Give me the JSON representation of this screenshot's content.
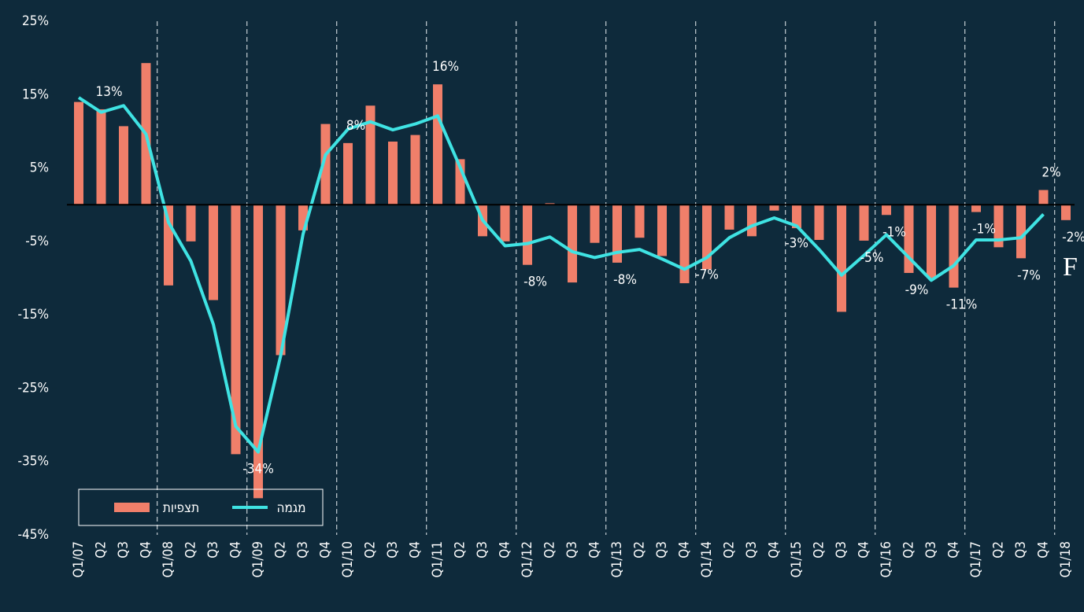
{
  "chart_data": {
    "type": "bar+line",
    "categories": [
      "Q1/07",
      "Q2",
      "Q3",
      "Q4",
      "Q1/08",
      "Q2",
      "Q3",
      "Q4",
      "Q1/09",
      "Q2",
      "Q3",
      "Q4",
      "Q1/10",
      "Q2",
      "Q3",
      "Q4",
      "Q1/11",
      "Q2",
      "Q3",
      "Q4",
      "Q1/12",
      "Q2",
      "Q3",
      "Q4",
      "Q1/13",
      "Q2",
      "Q3",
      "Q4",
      "Q1/14",
      "Q2",
      "Q3",
      "Q4",
      "Q1/15",
      "Q2",
      "Q3",
      "Q4",
      "Q1/16",
      "Q2",
      "Q3",
      "Q4",
      "Q1/17",
      "Q2",
      "Q3",
      "Q4",
      "Q1/18"
    ],
    "series": [
      {
        "name": "תצפיות",
        "type": "bar",
        "color": "#f07f6a",
        "values": [
          14,
          13,
          10.7,
          19.3,
          -11,
          -5,
          -13,
          -34,
          -40,
          -20.5,
          -3.5,
          11,
          8.4,
          13.5,
          8.6,
          9.5,
          16.4,
          6.2,
          -4.3,
          -5,
          -8.2,
          0.2,
          -10.6,
          -5.2,
          -7.9,
          -4.5,
          -7,
          -10.7,
          -8.8,
          -3.4,
          -4.3,
          -0.8,
          -3.2,
          -4.8,
          -14.6,
          -4.9,
          -1.4,
          -9.3,
          -10,
          -11.3,
          -1,
          -5.8,
          -7.3,
          2,
          -2.1
        ],
        "value_labels": [
          null,
          "13%",
          null,
          null,
          null,
          null,
          null,
          null,
          null,
          null,
          null,
          null,
          "8%",
          null,
          null,
          null,
          "16%",
          null,
          null,
          null,
          "-8%",
          null,
          null,
          null,
          "-8%",
          null,
          null,
          null,
          null,
          null,
          null,
          null,
          null,
          null,
          null,
          "-5%",
          "-1%",
          "-9%",
          null,
          "-11%",
          "-1%",
          null,
          "-7%",
          "2%",
          "-2%"
        ]
      },
      {
        "name": "מגמה",
        "type": "line",
        "color": "#3fe3e3",
        "values": [
          14.6,
          12.6,
          13.5,
          9.6,
          -2.4,
          -7.7,
          -16.3,
          -30.2,
          -33.7,
          -20.6,
          -4,
          6.8,
          10.3,
          11.3,
          10.2,
          11,
          12.1,
          5.1,
          -2.1,
          -5.6,
          -5.3,
          -4.4,
          -6.4,
          -7.2,
          -6.5,
          -6.1,
          -7.4,
          -8.8,
          -7.2,
          -4.5,
          -2.9,
          -1.8,
          -2.9,
          -6.1,
          -9.6,
          -6.9,
          -4.1,
          -7.2,
          -10.3,
          -8.3,
          -4.8,
          -4.8,
          -4.5,
          -1.3,
          null
        ],
        "value_labels": [
          null,
          null,
          null,
          null,
          null,
          null,
          null,
          null,
          "-34%",
          null,
          null,
          null,
          null,
          null,
          null,
          null,
          null,
          null,
          null,
          null,
          null,
          null,
          null,
          null,
          null,
          null,
          null,
          null,
          "-7%",
          null,
          null,
          null,
          "-3%",
          null,
          null,
          null,
          null,
          null,
          null,
          null,
          null,
          null,
          null,
          null,
          null
        ]
      }
    ],
    "annotations": [
      "F"
    ],
    "ylim": [
      -45,
      25
    ],
    "yticks": [
      {
        "value": 25,
        "label": "25%"
      },
      {
        "value": 15,
        "label": "15%"
      },
      {
        "value": 5,
        "label": "5%"
      },
      {
        "value": -5,
        "label": "-5%"
      },
      {
        "value": -15,
        "label": "-15%"
      },
      {
        "value": -25,
        "label": "-25%"
      },
      {
        "value": -35,
        "label": "-35%"
      },
      {
        "value": -45,
        "label": "-45%"
      }
    ],
    "legend": "bottom-left"
  }
}
